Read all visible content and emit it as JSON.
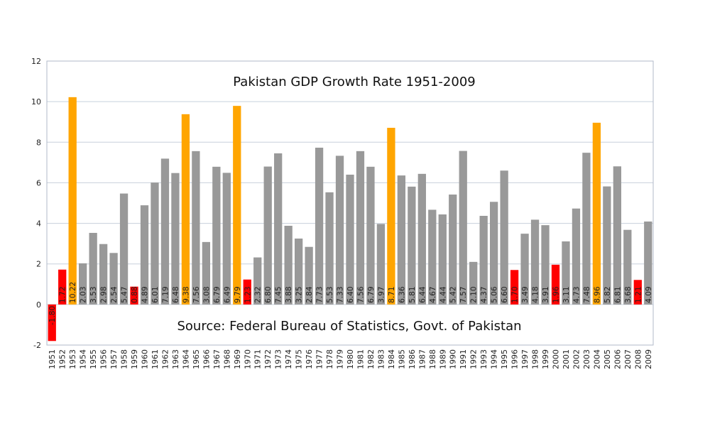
{
  "chart_data": {
    "type": "bar",
    "title": "Pakistan GDP Growth Rate 1951-2009",
    "annotation": "Source: Federal Bureau of Statistics, Govt. of Pakistan",
    "xlabel": "",
    "ylabel": "",
    "ylim": [
      -2,
      12
    ],
    "yticks": [
      -2,
      0,
      2,
      4,
      6,
      8,
      10,
      12
    ],
    "grid": true,
    "legend": "none",
    "colors": {
      "normal": "#999999",
      "high": "#ffa500",
      "low": "#ff0000",
      "grid": "#c8d0dc",
      "frame": "#b0b8c8"
    },
    "categories": [
      "1951",
      "1952",
      "1953",
      "1954",
      "1955",
      "1956",
      "1957",
      "1958",
      "1959",
      "1960",
      "1961",
      "1962",
      "1963",
      "1964",
      "1965",
      "1966",
      "1967",
      "1968",
      "1969",
      "1970",
      "1971",
      "1972",
      "1973",
      "1974",
      "1975",
      "1976",
      "1977",
      "1978",
      "1979",
      "1980",
      "1981",
      "1982",
      "1983",
      "1984",
      "1985",
      "1986",
      "1987",
      "1988",
      "1989",
      "1990",
      "1991",
      "1992",
      "1993",
      "1994",
      "1995",
      "1996",
      "1997",
      "1998",
      "1999",
      "2000",
      "2001",
      "2002",
      "2003",
      "2004",
      "2005",
      "2006",
      "2007",
      "2008",
      "2009"
    ],
    "values": [
      -1.8,
      1.72,
      10.22,
      2.03,
      3.53,
      2.98,
      2.54,
      5.47,
      0.88,
      4.89,
      6.01,
      7.19,
      6.48,
      9.38,
      7.56,
      3.08,
      6.79,
      6.49,
      9.79,
      1.23,
      2.32,
      6.8,
      7.45,
      3.88,
      3.25,
      2.84,
      7.73,
      5.53,
      7.33,
      6.4,
      7.56,
      6.79,
      3.97,
      8.71,
      6.36,
      5.81,
      6.44,
      4.67,
      4.44,
      5.42,
      7.57,
      2.1,
      4.37,
      5.06,
      6.6,
      1.7,
      3.49,
      4.18,
      3.91,
      1.96,
      3.11,
      4.73,
      7.48,
      8.96,
      5.82,
      6.81,
      3.68,
      1.21,
      4.09
    ],
    "bar_class": [
      "low",
      "low",
      "high",
      "normal",
      "normal",
      "normal",
      "normal",
      "normal",
      "low",
      "normal",
      "normal",
      "normal",
      "normal",
      "high",
      "normal",
      "normal",
      "normal",
      "normal",
      "high",
      "low",
      "normal",
      "normal",
      "normal",
      "normal",
      "normal",
      "normal",
      "normal",
      "normal",
      "normal",
      "normal",
      "normal",
      "normal",
      "normal",
      "high",
      "normal",
      "normal",
      "normal",
      "normal",
      "normal",
      "normal",
      "normal",
      "normal",
      "normal",
      "normal",
      "normal",
      "low",
      "normal",
      "normal",
      "normal",
      "low",
      "normal",
      "normal",
      "normal",
      "high",
      "normal",
      "normal",
      "normal",
      "low",
      "normal"
    ],
    "value_labels": [
      "-1.80",
      "1.72",
      "10.22",
      "2.03",
      "3.53",
      "2.98",
      "2.54",
      "5.47",
      "0.88",
      "4.89",
      "6.01",
      "7.19",
      "6.48",
      "9.38",
      "7.56",
      "3.08",
      "6.79",
      "6.49",
      "9.79",
      "1.23",
      "2.32",
      "6.80",
      "7.45",
      "3.88",
      "3.25",
      "2.84",
      "7.73",
      "5.53",
      "7.33",
      "6.40",
      "7.56",
      "6.79",
      "3.97",
      "8.71",
      "6.36",
      "5.81",
      "6.44",
      "4.67",
      "4.44",
      "5.42",
      "7.57",
      "2.10",
      "4.37",
      "5.06",
      "6.60",
      "1.70",
      "3.49",
      "4.18",
      "3.91",
      "1.96",
      "3.11",
      "4.73",
      "7.48",
      "8.96",
      "5.82",
      "6.81",
      "3.68",
      "1.21",
      "4.09"
    ]
  }
}
